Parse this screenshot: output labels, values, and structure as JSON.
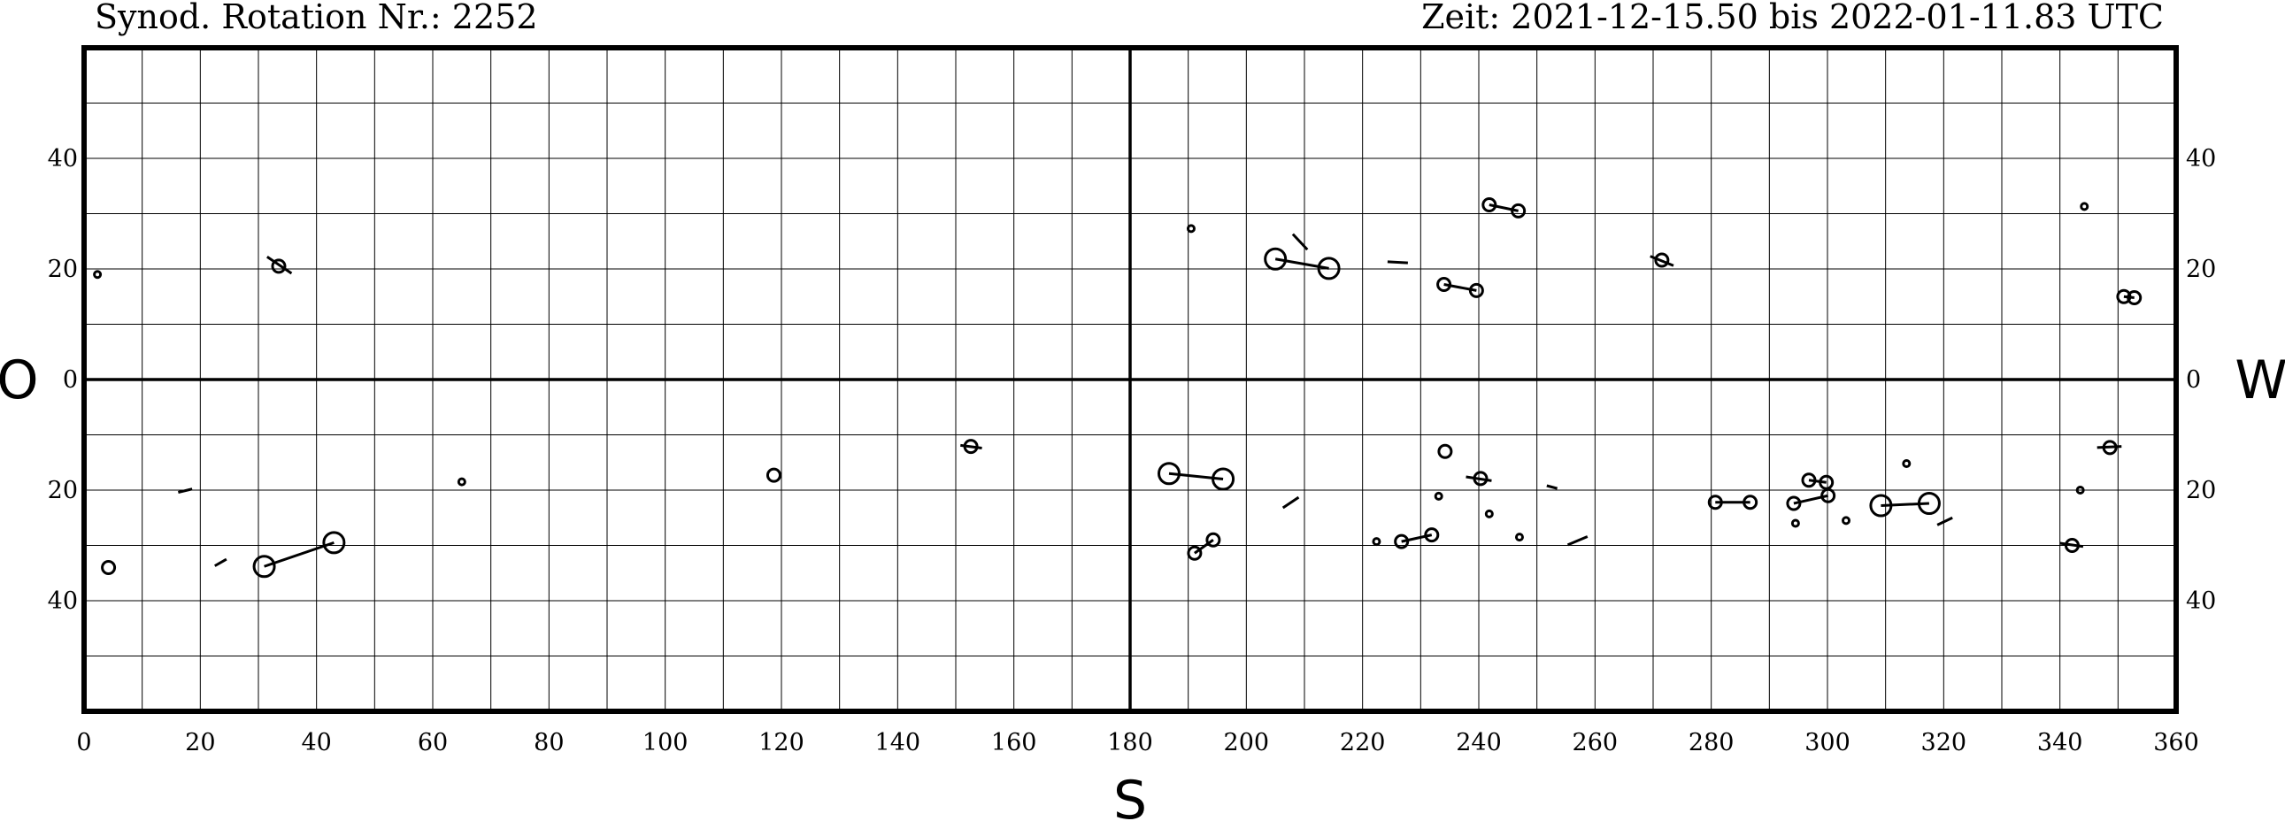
{
  "chart_data": {
    "type": "scatter",
    "header": {
      "left": "Synod. Rotation Nr.: 2252",
      "right": "Zeit: 2021-12-15.50 bis 2022-01-11.83 UTC"
    },
    "edge_labels": {
      "left": "O",
      "right": "W",
      "bottom": "S"
    },
    "xlim": [
      0,
      360
    ],
    "ylim": [
      -60,
      60
    ],
    "x_ticks": [
      0,
      20,
      40,
      60,
      80,
      100,
      120,
      140,
      160,
      180,
      200,
      220,
      240,
      260,
      280,
      300,
      320,
      340,
      360
    ],
    "y_ticks": [
      40,
      20,
      0,
      -20,
      -40
    ],
    "y_tick_labels": [
      "40",
      "20",
      "0",
      "20",
      "40"
    ],
    "grid": {
      "x_step": 10,
      "y_step": 10,
      "shown": true
    },
    "spots": [
      {
        "x": 2.3,
        "y": 19,
        "size": "xs"
      },
      {
        "x": 33.5,
        "y": 20.5,
        "size": "s"
      },
      {
        "x": 4.2,
        "y": -34,
        "size": "s"
      },
      {
        "x": 31,
        "y": -33.8,
        "size": "l"
      },
      {
        "x": 43,
        "y": -29.5,
        "size": "l"
      },
      {
        "x": 65,
        "y": -18.5,
        "size": "xs"
      },
      {
        "x": 118.7,
        "y": -17.3,
        "size": "s"
      },
      {
        "x": 152.6,
        "y": -12.1,
        "size": "s"
      },
      {
        "x": 190.5,
        "y": 27.3,
        "size": "xs"
      },
      {
        "x": 205,
        "y": 21.8,
        "size": "l"
      },
      {
        "x": 214.2,
        "y": 20.1,
        "size": "l"
      },
      {
        "x": 234,
        "y": 17.2,
        "size": "s"
      },
      {
        "x": 239.6,
        "y": 16.1,
        "size": "s"
      },
      {
        "x": 241.8,
        "y": 31.6,
        "size": "s"
      },
      {
        "x": 246.8,
        "y": 30.5,
        "size": "s"
      },
      {
        "x": 271.5,
        "y": 21.6,
        "size": "s"
      },
      {
        "x": 344.2,
        "y": 31.3,
        "size": "xs"
      },
      {
        "x": 351,
        "y": 15,
        "size": "s"
      },
      {
        "x": 352.8,
        "y": 14.8,
        "size": "s"
      },
      {
        "x": 186.7,
        "y": -17,
        "size": "l"
      },
      {
        "x": 196,
        "y": -18,
        "size": "l"
      },
      {
        "x": 191.1,
        "y": -31.4,
        "size": "s"
      },
      {
        "x": 194.3,
        "y": -29,
        "size": "s"
      },
      {
        "x": 222.4,
        "y": -29.3,
        "size": "xs"
      },
      {
        "x": 226.7,
        "y": -29.3,
        "size": "s"
      },
      {
        "x": 231.9,
        "y": -28.1,
        "size": "s"
      },
      {
        "x": 233.1,
        "y": -21.1,
        "size": "xs"
      },
      {
        "x": 234.2,
        "y": -13,
        "size": "s"
      },
      {
        "x": 240.3,
        "y": -17.9,
        "size": "s"
      },
      {
        "x": 241.8,
        "y": -24.3,
        "size": "xs"
      },
      {
        "x": 247,
        "y": -28.5,
        "size": "xs"
      },
      {
        "x": 280.7,
        "y": -22.2,
        "size": "s"
      },
      {
        "x": 286.7,
        "y": -22.2,
        "size": "s"
      },
      {
        "x": 294.2,
        "y": -22.4,
        "size": "s"
      },
      {
        "x": 294.5,
        "y": -26,
        "size": "xs"
      },
      {
        "x": 296.8,
        "y": -18.2,
        "size": "s"
      },
      {
        "x": 299.8,
        "y": -18.6,
        "size": "s"
      },
      {
        "x": 300.1,
        "y": -21,
        "size": "s"
      },
      {
        "x": 303.2,
        "y": -25.5,
        "size": "xs"
      },
      {
        "x": 309.2,
        "y": -22.8,
        "size": "l"
      },
      {
        "x": 317.5,
        "y": -22.4,
        "size": "l"
      },
      {
        "x": 313.6,
        "y": -15.2,
        "size": "xs"
      },
      {
        "x": 342.1,
        "y": -30,
        "size": "s"
      },
      {
        "x": 343.5,
        "y": -20,
        "size": "xs"
      },
      {
        "x": 348.6,
        "y": -12.3,
        "size": "s"
      }
    ],
    "links": [
      {
        "x1": 31,
        "y1": -33.8,
        "x2": 43,
        "y2": -29.5
      },
      {
        "x1": 205,
        "y1": 21.8,
        "x2": 214.2,
        "y2": 20.1
      },
      {
        "x1": 234,
        "y1": 17.2,
        "x2": 239.6,
        "y2": 16.1
      },
      {
        "x1": 241.8,
        "y1": 31.6,
        "x2": 246.8,
        "y2": 30.5
      },
      {
        "x1": 351,
        "y1": 15,
        "x2": 352.8,
        "y2": 14.8
      },
      {
        "x1": 186.7,
        "y1": -17,
        "x2": 196,
        "y2": -18
      },
      {
        "x1": 191.1,
        "y1": -31.4,
        "x2": 194.3,
        "y2": -29
      },
      {
        "x1": 226.7,
        "y1": -29.3,
        "x2": 231.9,
        "y2": -28.1
      },
      {
        "x1": 280.7,
        "y1": -22.2,
        "x2": 286.7,
        "y2": -22.2
      },
      {
        "x1": 294.2,
        "y1": -22.4,
        "x2": 300.1,
        "y2": -21
      },
      {
        "x1": 296.8,
        "y1": -18.2,
        "x2": 299.8,
        "y2": -18.6
      },
      {
        "x1": 309.2,
        "y1": -22.8,
        "x2": 317.5,
        "y2": -22.4
      },
      {
        "x1": 31.5,
        "y1": 22.2,
        "x2": 35.7,
        "y2": 19.2
      },
      {
        "x1": 150.8,
        "y1": -11.9,
        "x2": 154.5,
        "y2": -12.4
      },
      {
        "x1": 269.5,
        "y1": 22.3,
        "x2": 273.5,
        "y2": 20.6
      },
      {
        "x1": 237.8,
        "y1": -17.6,
        "x2": 242.2,
        "y2": -18.3
      },
      {
        "x1": 340,
        "y1": -29.6,
        "x2": 344,
        "y2": -30.2
      },
      {
        "x1": 346.4,
        "y1": -12.3,
        "x2": 350.6,
        "y2": -12.1
      },
      {
        "x1": 16.2,
        "y1": -20.4,
        "x2": 18.6,
        "y2": -19.8
      },
      {
        "x1": 22.5,
        "y1": -33.7,
        "x2": 24.5,
        "y2": -32.5
      },
      {
        "x1": 208,
        "y1": 26.3,
        "x2": 210.5,
        "y2": 23.5
      },
      {
        "x1": 224.3,
        "y1": 21.3,
        "x2": 227.8,
        "y2": 21.1
      },
      {
        "x1": 206.3,
        "y1": -23.2,
        "x2": 209,
        "y2": -21.3
      },
      {
        "x1": 251.7,
        "y1": -19.2,
        "x2": 253.5,
        "y2": -19.7
      },
      {
        "x1": 255.3,
        "y1": -29.9,
        "x2": 258.7,
        "y2": -28.4
      },
      {
        "x1": 318.9,
        "y1": -26.3,
        "x2": 321.5,
        "y2": -25
      }
    ]
  }
}
